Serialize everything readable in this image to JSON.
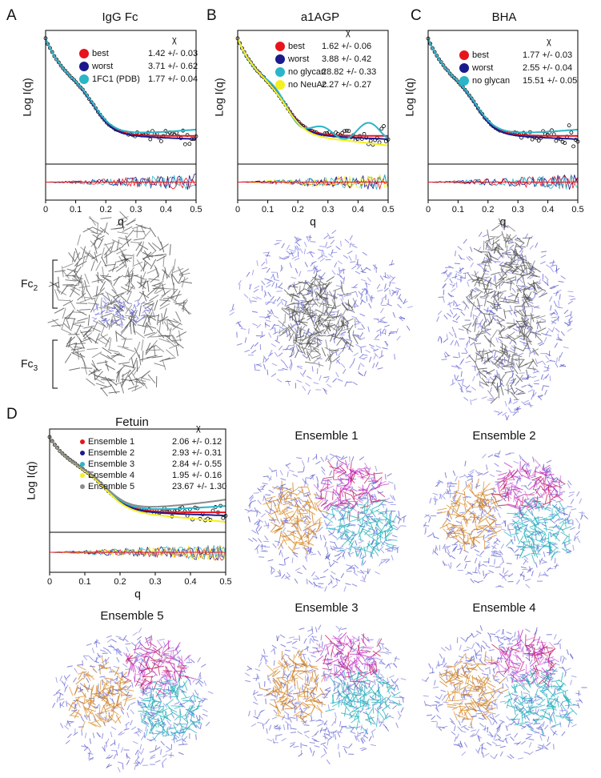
{
  "panels": [
    {
      "label": "A",
      "title": "IgG Fc",
      "y_label": "Log I(q)",
      "x_label": "q",
      "chi_header": "χ",
      "xlim": [
        0,
        0.5
      ],
      "xticks": [
        0,
        0.1,
        0.2,
        0.3,
        0.4,
        0.5
      ],
      "legend": [
        {
          "name": "best",
          "color": "#e8141c",
          "chi": "1.42 +/- 0.03"
        },
        {
          "name": "worst",
          "color": "#1a1a8c",
          "chi": "3.71 +/- 0.62"
        },
        {
          "name": "1FC1 (PDB)",
          "color": "#2bb5c8",
          "chi": "1.77 +/- 0.04"
        }
      ]
    },
    {
      "label": "B",
      "title": "a1AGP",
      "y_label": "Log I(q)",
      "x_label": "q",
      "chi_header": "χ",
      "xlim": [
        0,
        0.5
      ],
      "xticks": [
        0,
        0.1,
        0.2,
        0.3,
        0.4,
        0.5
      ],
      "legend": [
        {
          "name": "best",
          "color": "#e8141c",
          "chi": "1.62 +/- 0.06"
        },
        {
          "name": "worst",
          "color": "#1a1a8c",
          "chi": "3.88 +/- 0.42"
        },
        {
          "name": "no glycan",
          "color": "#2bb5c8",
          "chi": "28.82 +/- 0.33"
        },
        {
          "name": "no NeuAc",
          "color": "#f5f01e",
          "chi": "2.27 +/- 0.27"
        }
      ]
    },
    {
      "label": "C",
      "title": "BHA",
      "y_label": "Log I(q)",
      "x_label": "q",
      "chi_header": "χ",
      "xlim": [
        0,
        0.5
      ],
      "xticks": [
        0,
        0.1,
        0.2,
        0.3,
        0.4,
        0.5
      ],
      "legend": [
        {
          "name": "best",
          "color": "#e8141c",
          "chi": "1.77 +/- 0.03"
        },
        {
          "name": "worst",
          "color": "#1a1a8c",
          "chi": "2.55 +/- 0.04"
        },
        {
          "name": "no glycan",
          "color": "#2bb5c8",
          "chi": "15.51 +/- 0.05"
        }
      ]
    },
    {
      "label": "D",
      "title": "Fetuin",
      "y_label": "Log I(q)",
      "x_label": "q",
      "chi_header": "χ",
      "xlim": [
        0,
        0.5
      ],
      "xticks": [
        0,
        0.1,
        0.2,
        0.3,
        0.4,
        0.5
      ],
      "legend": [
        {
          "name": "Ensemble 1",
          "color": "#e8141c",
          "chi": "2.06 +/- 0.12"
        },
        {
          "name": "Ensemble 2",
          "color": "#1a1a8c",
          "chi": "2.93 +/- 0.31"
        },
        {
          "name": "Ensemble 3",
          "color": "#2bb5c8",
          "chi": "2.84 +/- 0.55"
        },
        {
          "name": "Ensemble 4",
          "color": "#f5f01e",
          "chi": "1.95 +/- 0.16"
        },
        {
          "name": "Ensemble 5",
          "color": "#8c8c8c",
          "chi": "23.67 +/- 1.30"
        }
      ]
    }
  ],
  "domain_labels": [
    {
      "text": "Fc",
      "sub": "2"
    },
    {
      "text": "Fc",
      "sub": "3"
    }
  ],
  "ensembles": [
    "Ensemble 1",
    "Ensemble 2",
    "Ensemble 3",
    "Ensemble 4",
    "Ensemble 5"
  ]
}
